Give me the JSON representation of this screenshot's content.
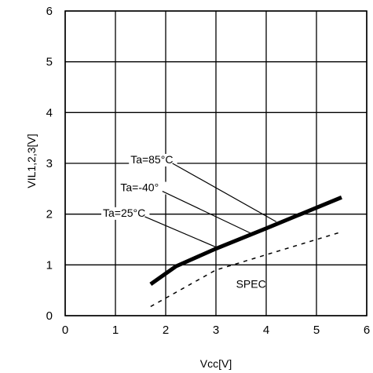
{
  "chart_data": {
    "type": "line",
    "xlabel": "Vcc[V]",
    "ylabel": "VIL1,2,3[V]",
    "xlim": [
      0,
      6
    ],
    "ylim": [
      0,
      6
    ],
    "x_ticks": [
      "0",
      "1",
      "2",
      "3",
      "4",
      "5",
      "6"
    ],
    "y_ticks": [
      "0",
      "1",
      "2",
      "3",
      "4",
      "5",
      "6"
    ],
    "grid": true,
    "series": [
      {
        "name": "",
        "style": "solid-thick",
        "x": [
          1.7,
          2.2,
          3.0,
          4.0,
          5.5
        ],
        "y": [
          0.62,
          0.97,
          1.32,
          1.72,
          2.33
        ]
      },
      {
        "name": "SPEC",
        "style": "dashed",
        "x": [
          1.7,
          3.0,
          5.5
        ],
        "y": [
          0.18,
          0.9,
          1.65
        ]
      }
    ],
    "annotations": [
      {
        "text": "Ta=85°C",
        "label_x": 1.3,
        "label_y": 3.0,
        "target_x": 4.2,
        "target_y": 1.85
      },
      {
        "text": "Ta=-40°",
        "label_x": 1.1,
        "label_y": 2.45,
        "target_x": 3.7,
        "target_y": 1.62
      },
      {
        "text": "Ta=25°C",
        "label_x": 0.75,
        "label_y": 1.95,
        "target_x": 3.0,
        "target_y": 1.35
      },
      {
        "text": "SPEC",
        "label_x": 3.4,
        "label_y": 0.55,
        "target_x": null,
        "target_y": null
      }
    ],
    "colors": {
      "line": "#000000",
      "grid": "#000000",
      "background": "#ffffff"
    }
  }
}
